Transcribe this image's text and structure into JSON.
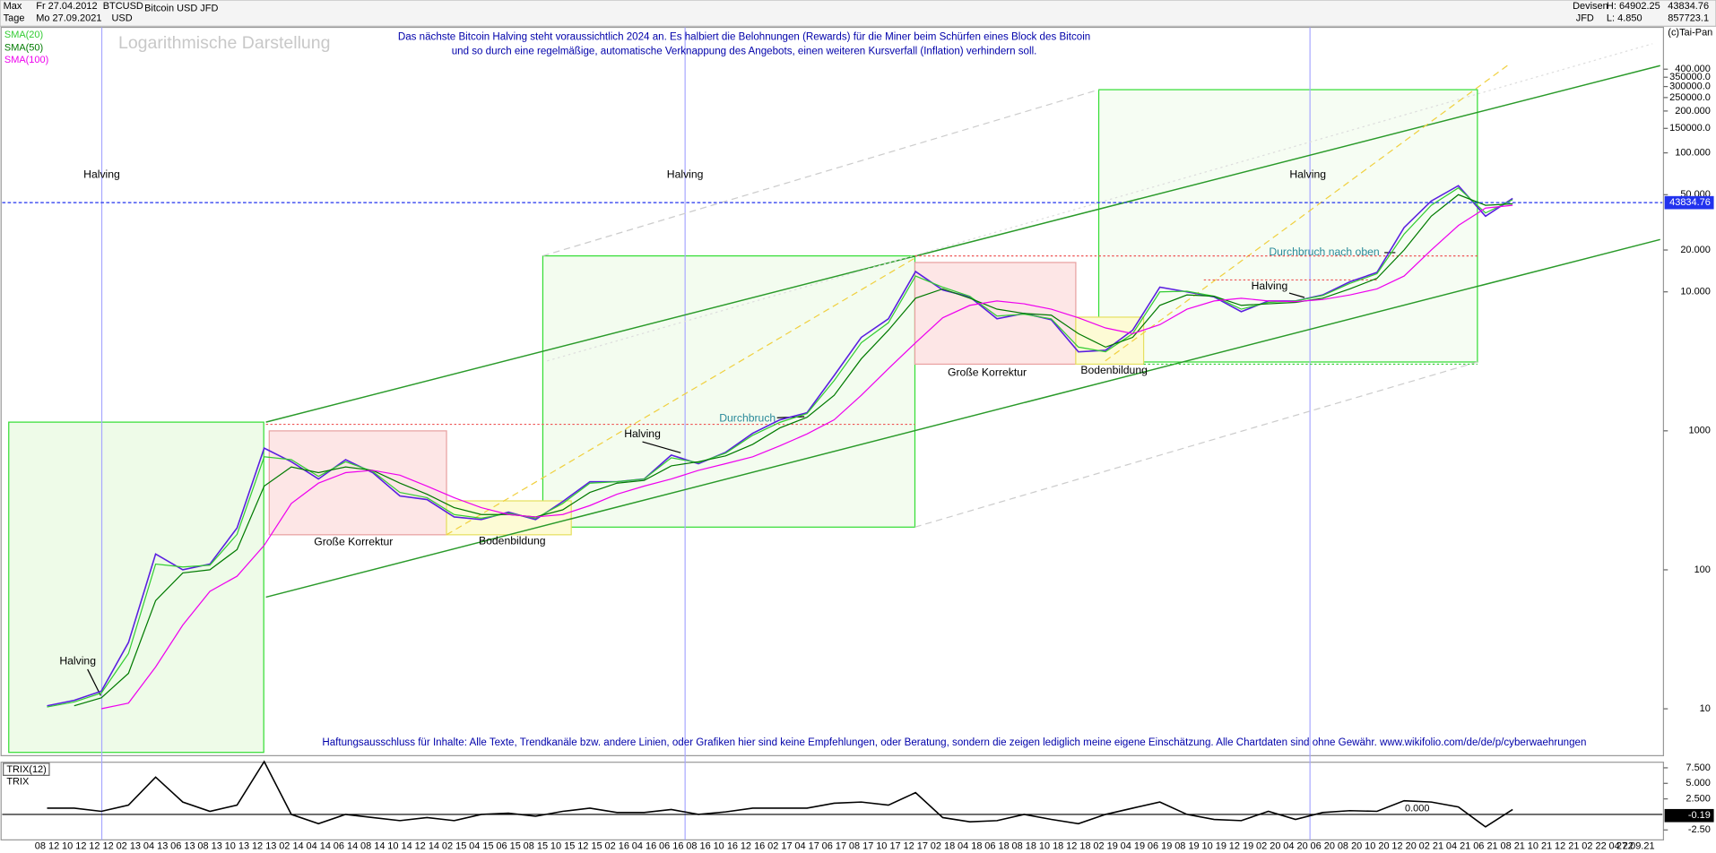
{
  "header": {
    "range": "Max",
    "start": "Fr 27.04.2012",
    "period": "Tage",
    "end": "Mo 27.09.2021",
    "currency": "USD",
    "instrument": "Bitcoin USD JFD",
    "group": "Devisen",
    "broker": "JFD",
    "high": "H: 64902.25",
    "low": "L: 4.850",
    "top_value": "857723.1",
    "copyright": "(c)Tai-Pan"
  },
  "chart_data": [
    {
      "type": "line",
      "title": "Logarithmische Darstellung",
      "log_scale": true,
      "note": [
        "Das nächste Bitcoin Halving steht voraussichtlich 2024 an. Es halbiert die Belohnungen (Rewards) für die Miner beim Schürfen eines Block des Bitcoin",
        "und so durch eine regelmäßige, automatische Verknappung des Angebots, einen weiteren Kursverfall (Inflation) verhindern soll."
      ],
      "disclaimer": "Haftungsausschluss für Inhalte: Alle Texte, Trendkanäle bzw. andere Linien, oder Grafiken hier sind keine Empfehlungen, oder Beratung, sondern die zeigen lediglich meine eigene Einschätzung. Alle Chartdaten sind ohne Gewähr.  www.wikifolio.com/de/de/p/cyberwaehrungen",
      "annotations": [
        "Halving",
        "Halving",
        "Halving",
        "Halving",
        "Halving",
        "Halving",
        "Große Korrektur",
        "Große Korrektur",
        "Bodenbildung",
        "Bodenbildung",
        "Durchbruch",
        "Durchbruch nach oben"
      ],
      "last_date": "27.09.21",
      "last_value": 43834.76,
      "categories": [
        "08 12",
        "10 12",
        "12 12",
        "02 13",
        "04 13",
        "06 13",
        "08 13",
        "10 13",
        "12 13",
        "02 14",
        "04 14",
        "06 14",
        "08 14",
        "10 14",
        "12 14",
        "02 15",
        "04 15",
        "06 15",
        "08 15",
        "10 15",
        "12 15",
        "02 16",
        "04 16",
        "06 16",
        "08 16",
        "10 16",
        "12 16",
        "02 17",
        "04 17",
        "06 17",
        "08 17",
        "10 17",
        "12 17",
        "02 18",
        "04 18",
        "06 18",
        "08 18",
        "10 18",
        "12 18",
        "02 19",
        "04 19",
        "06 19",
        "08 19",
        "10 19",
        "12 19",
        "02 20",
        "04 20",
        "06 20",
        "08 20",
        "10 20",
        "12 20",
        "02 21",
        "04 21",
        "06 21",
        "08 21",
        "10 21",
        "12 21",
        "02 22",
        "04 22"
      ],
      "ylim": [
        4.6,
        800000
      ],
      "yticks": [
        10,
        100,
        1000,
        {
          "value": 10000,
          "label": "10.000"
        },
        {
          "value": 20000,
          "label": "20.000"
        },
        {
          "value": 50000,
          "label": "50.000"
        },
        {
          "value": 100000,
          "label": "100.000"
        },
        {
          "value": 150000,
          "label": "150000.0"
        },
        {
          "value": 200000,
          "label": "200.000"
        },
        {
          "value": 250000,
          "label": "250000.0"
        },
        {
          "value": 300000,
          "label": "300000.0"
        },
        {
          "value": 350000,
          "label": "350000.0"
        },
        {
          "value": 400000,
          "label": "400.000"
        }
      ],
      "series": [
        {
          "name": "BTCUSD",
          "color": "#5a1fe0",
          "values": [
            10.5,
            11.5,
            13.4,
            30,
            130,
            100,
            110,
            200,
            750,
            600,
            450,
            620,
            500,
            340,
            320,
            240,
            230,
            260,
            230,
            310,
            430,
            430,
            450,
            670,
            580,
            700,
            960,
            1200,
            1350,
            2500,
            4700,
            6400,
            14000,
            10300,
            9200,
            6400,
            7000,
            6300,
            3700,
            3800,
            5300,
            10800,
            10000,
            9200,
            7200,
            8600,
            8600,
            9500,
            11800,
            13800,
            29000,
            45000,
            58000,
            35000,
            47000,
            null,
            null,
            null,
            null
          ]
        },
        {
          "name": "SMA(20)",
          "color": "#33cc33",
          "values": [
            10.3,
            11.2,
            13,
            25,
            110,
            105,
            108,
            180,
            650,
            620,
            470,
            600,
            510,
            360,
            330,
            250,
            235,
            255,
            235,
            300,
            420,
            430,
            450,
            640,
            590,
            690,
            930,
            1150,
            1330,
            2300,
            4300,
            6000,
            13000,
            10800,
            9300,
            6700,
            6900,
            6400,
            4000,
            3700,
            5000,
            10000,
            10100,
            9300,
            7500,
            8400,
            8600,
            9400,
            11500,
            13500,
            26000,
            42000,
            56000,
            37000,
            46000,
            null,
            null,
            null,
            null
          ]
        },
        {
          "name": "SMA(50)",
          "color": "#007a00",
          "values": [
            null,
            10.5,
            12,
            18,
            60,
            95,
            100,
            140,
            400,
            550,
            500,
            550,
            520,
            420,
            350,
            280,
            250,
            250,
            240,
            270,
            360,
            420,
            440,
            560,
            600,
            660,
            800,
            1050,
            1250,
            1800,
            3300,
            5300,
            9000,
            10500,
            9000,
            7500,
            7000,
            6800,
            5000,
            4000,
            4700,
            8000,
            9500,
            9300,
            8000,
            8200,
            8400,
            9000,
            10500,
            12500,
            20000,
            35000,
            50000,
            42000,
            43000,
            null,
            null,
            null,
            null
          ]
        },
        {
          "name": "SMA(100)",
          "color": "#ee00ee",
          "values": [
            null,
            null,
            10,
            11,
            20,
            40,
            70,
            90,
            150,
            300,
            420,
            500,
            520,
            480,
            400,
            330,
            280,
            250,
            240,
            250,
            290,
            350,
            400,
            450,
            520,
            580,
            650,
            780,
            950,
            1200,
            1800,
            2800,
            4300,
            6500,
            8000,
            8600,
            8200,
            7500,
            6500,
            5500,
            5000,
            5800,
            7500,
            8600,
            9000,
            8600,
            8500,
            8800,
            9500,
            10500,
            13000,
            20000,
            30000,
            40000,
            42000,
            null,
            null,
            null,
            null
          ]
        }
      ]
    },
    {
      "type": "line",
      "title": "TRIX",
      "last_value": -0.19,
      "reference_line": {
        "value": 0,
        "label": "0.000"
      },
      "ylim": [
        -4.1,
        8.4
      ],
      "yticks": [
        {
          "value": 7.5,
          "label": "7.500"
        },
        {
          "value": 5,
          "label": "5.000"
        },
        {
          "value": 2.5,
          "label": "2.500"
        },
        {
          "value": -2.5,
          "label": "-2.50"
        }
      ],
      "series": [
        {
          "name": "TRIX(12)",
          "color": "#000000",
          "values": [
            1,
            1,
            0.5,
            1.5,
            6,
            2,
            0.5,
            1.5,
            8.5,
            0,
            -1.5,
            0,
            -0.5,
            -1,
            -0.5,
            -1,
            0,
            0.2,
            -0.3,
            0.5,
            1,
            0.3,
            0.3,
            0.8,
            0,
            0.4,
            1,
            1,
            1,
            1.8,
            2,
            1.5,
            3.5,
            -0.5,
            -1.2,
            -1,
            0,
            -0.8,
            -1.5,
            0,
            1,
            2,
            0,
            -0.8,
            -1,
            0.5,
            -0.8,
            0.3,
            0.6,
            0.5,
            2.2,
            2,
            1.2,
            -2,
            0.8,
            null,
            null,
            null,
            null
          ]
        }
      ]
    }
  ]
}
